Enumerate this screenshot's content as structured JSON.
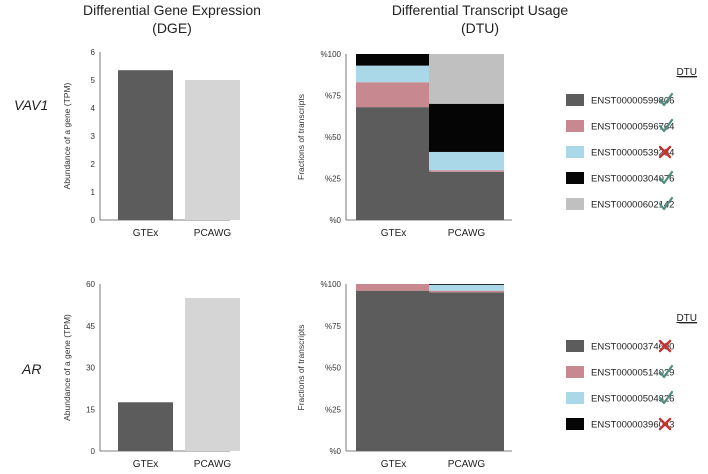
{
  "headers": {
    "dge_line1": "Differential Gene Expression",
    "dge_line2": "(DGE)",
    "dtu_line1": "Differential Transcript Usage",
    "dtu_line2": "(DTU)"
  },
  "colors": {
    "gtex_bar": "#5c5c5c",
    "pcawg_bar": "#d5d5d5",
    "check": "#4f8d80",
    "cross": "#c8322e"
  },
  "chart_data": [
    {
      "type": "bar",
      "gene": "VAV1",
      "ylabel": "Abundance of a gene (TPM)",
      "categories": [
        "GTEx",
        "PCAWG"
      ],
      "values": [
        5.35,
        5.0
      ],
      "ylim": [
        0,
        6
      ],
      "yticks": [
        0,
        1,
        2,
        3,
        4,
        5,
        6
      ]
    },
    {
      "type": "bar",
      "stacked": true,
      "gene": "VAV1",
      "ylabel": "Fractions of transcripts",
      "categories": [
        "GTEx",
        "PCAWG"
      ],
      "ylim": [
        0,
        100
      ],
      "yticks": [
        0,
        25,
        50,
        75,
        100
      ],
      "ytick_labels": [
        "%0",
        "%25",
        "%50",
        "%75",
        "%100"
      ],
      "legend_title": "DTU",
      "series": [
        {
          "name": "ENST00000599806",
          "color": "#5c5c5c",
          "values": [
            68,
            29
          ],
          "dtu": "check"
        },
        {
          "name": "ENST00000596764",
          "color": "#c88890",
          "values": [
            15,
            1
          ],
          "dtu": "check"
        },
        {
          "name": "ENST00000539284",
          "color": "#aad8e8",
          "values": [
            10,
            11
          ],
          "dtu": "cross"
        },
        {
          "name": "ENST00000304076",
          "color": "#050505",
          "values": [
            7,
            29
          ],
          "dtu": "check"
        },
        {
          "name": "ENST00000602142",
          "color": "#c0c0c0",
          "values": [
            0,
            30
          ],
          "dtu": "check"
        }
      ]
    },
    {
      "type": "bar",
      "gene": "AR",
      "ylabel": "Abundance of a gene (TPM)",
      "categories": [
        "GTEx",
        "PCAWG"
      ],
      "values": [
        17.5,
        55
      ],
      "ylim": [
        0,
        60
      ],
      "yticks": [
        0,
        15,
        30,
        45,
        60
      ]
    },
    {
      "type": "bar",
      "stacked": true,
      "gene": "AR",
      "ylabel": "Fractions of transcripts",
      "categories": [
        "GTEx",
        "PCAWG"
      ],
      "ylim": [
        0,
        100
      ],
      "yticks": [
        0,
        25,
        50,
        75,
        100
      ],
      "ytick_labels": [
        "%0",
        "%25",
        "%50",
        "%75",
        "%100"
      ],
      "legend_title": "DTU",
      "series": [
        {
          "name": "ENST00000374690",
          "color": "#5c5c5c",
          "values": [
            96,
            95
          ],
          "dtu": "cross"
        },
        {
          "name": "ENST00000514029",
          "color": "#c88890",
          "values": [
            4,
            1
          ],
          "dtu": "check"
        },
        {
          "name": "ENST00000504326",
          "color": "#aad8e8",
          "values": [
            0,
            3.5
          ],
          "dtu": "check"
        },
        {
          "name": "ENST00000396043",
          "color": "#050505",
          "values": [
            0,
            0.5
          ],
          "dtu": "cross"
        }
      ]
    }
  ]
}
